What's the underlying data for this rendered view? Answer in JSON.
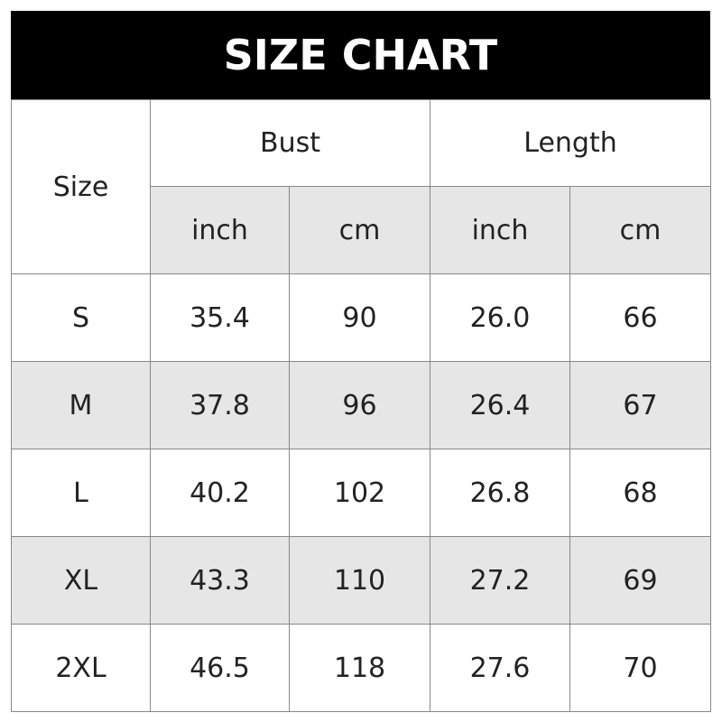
{
  "chart_data": {
    "type": "table",
    "title": "SIZE CHART",
    "size_header": "Size",
    "groups": [
      "Bust",
      "Length"
    ],
    "units": [
      "inch",
      "cm",
      "inch",
      "cm"
    ],
    "rows": [
      {
        "size": "S",
        "values": [
          "35.4",
          "90",
          "26.0",
          "66"
        ]
      },
      {
        "size": "M",
        "values": [
          "37.8",
          "96",
          "26.4",
          "67"
        ]
      },
      {
        "size": "L",
        "values": [
          "40.2",
          "102",
          "26.8",
          "68"
        ]
      },
      {
        "size": "XL",
        "values": [
          "43.3",
          "110",
          "27.2",
          "69"
        ]
      },
      {
        "size": "2XL",
        "values": [
          "46.5",
          "118",
          "27.6",
          "70"
        ]
      }
    ],
    "colors": {
      "header_bg": "#000000",
      "header_text": "#ffffff",
      "stripe": "#e6e6e6"
    }
  }
}
